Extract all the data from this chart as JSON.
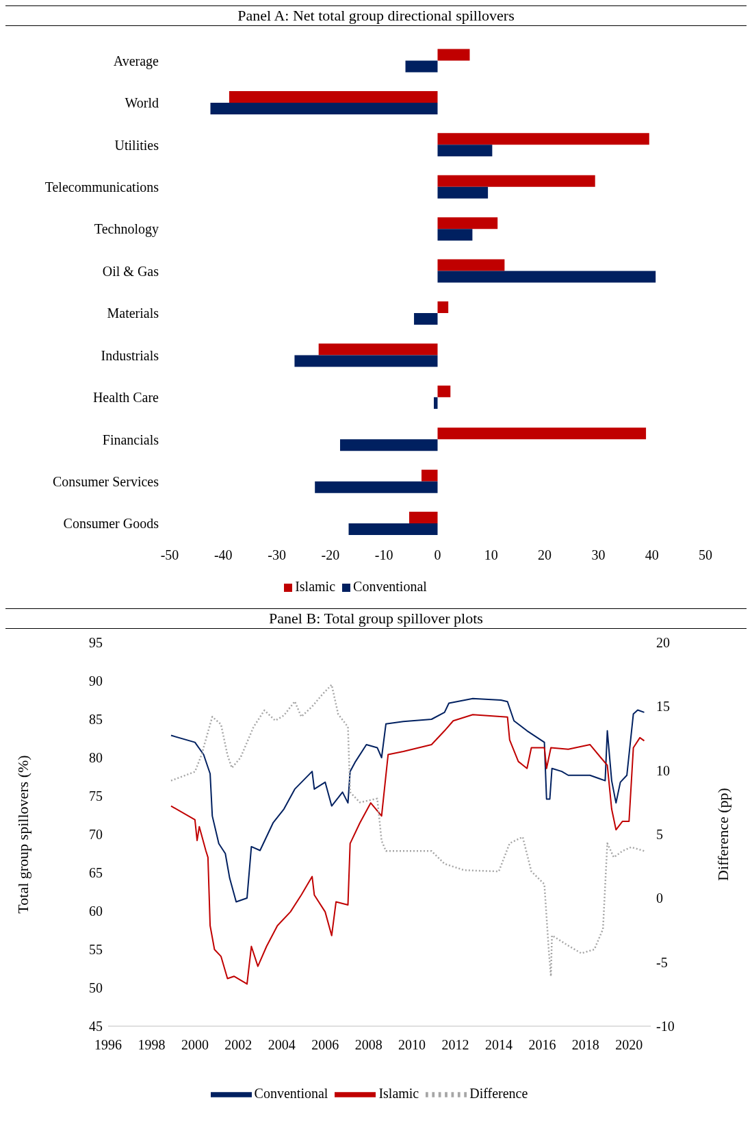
{
  "chart_data": [
    {
      "type": "bar",
      "title": "Panel A: Net total group directional spillovers",
      "orientation": "horizontal",
      "categories": [
        "Average",
        "World",
        "Utilities",
        "Telecommunications",
        "Technology",
        "Oil & Gas",
        "Materials",
        "Industrials",
        "Health Care",
        "Financials",
        "Consumer Services",
        "Consumer Goods"
      ],
      "series": [
        {
          "name": "Islamic",
          "color": "#c00000",
          "values": [
            6.0,
            -38.9,
            39.5,
            29.4,
            11.2,
            12.5,
            2.0,
            -22.2,
            2.4,
            38.9,
            -3.0,
            -5.3
          ]
        },
        {
          "name": "Conventional",
          "color": "#002060",
          "values": [
            -6.0,
            -42.4,
            10.2,
            9.4,
            6.5,
            40.7,
            -4.4,
            -26.7,
            -0.7,
            -18.2,
            -22.9,
            -16.6
          ]
        }
      ],
      "xlim": [
        -50,
        50
      ],
      "xticks": [
        -50,
        -40,
        -30,
        -20,
        -10,
        0,
        10,
        20,
        30,
        40,
        50
      ],
      "legend": "bottom",
      "grid": false
    },
    {
      "type": "line",
      "title": "Panel B: Total group spillover plots",
      "ylabel": "Total group spillovers (%)",
      "y2label": "Difference (pp)",
      "xlim": [
        1996,
        2021
      ],
      "xticks": [
        1996,
        1998,
        2000,
        2002,
        2004,
        2006,
        2008,
        2010,
        2012,
        2014,
        2016,
        2018,
        2020
      ],
      "ylim": [
        45,
        95
      ],
      "yticks": [
        45,
        50,
        55,
        60,
        65,
        70,
        75,
        80,
        85,
        90,
        95
      ],
      "y2lim": [
        -10,
        20
      ],
      "y2ticks": [
        -10,
        -5,
        0,
        5,
        10,
        15,
        20
      ],
      "legend": "bottom",
      "grid": false,
      "marker": "none",
      "series": [
        {
          "name": "Conventional",
          "color": "#002060",
          "line_style": "solid",
          "x": [
            1998.9,
            2000,
            2000.4,
            2000.7,
            2000.8,
            2001.1,
            2001.4,
            2001.6,
            2001.9,
            2002.4,
            2002.6,
            2003,
            2003.6,
            2004.1,
            2004.6,
            2005.4,
            2005.5,
            2006,
            2006.3,
            2006.8,
            2007.05,
            2007.15,
            2007.4,
            2007.9,
            2008.4,
            2008.6,
            2008.8,
            2009.6,
            2010.9,
            2011.5,
            2011.7,
            2012.8,
            2014.1,
            2014.4,
            2014.7,
            2015.3,
            2016.1,
            2016.2,
            2016.35,
            2016.45,
            2016.9,
            2017.2,
            2018.2,
            2018.6,
            2018.9,
            2019,
            2019.2,
            2019.4,
            2019.6,
            2019.9,
            2020.2,
            2020.4,
            2020.7
          ],
          "values": [
            82.9,
            82,
            80.4,
            77.9,
            72.4,
            68.8,
            67.5,
            64.3,
            61.2,
            61.7,
            68.4,
            67.9,
            71.5,
            73.3,
            75.9,
            78.2,
            75.9,
            76.8,
            73.7,
            75.5,
            74.1,
            78.2,
            79.5,
            81.7,
            81.3,
            80,
            84.4,
            84.7,
            85,
            85.9,
            87.1,
            87.7,
            87.5,
            87.3,
            84.8,
            83.5,
            82,
            74.6,
            74.6,
            78.6,
            78.2,
            77.7,
            77.7,
            77.3,
            77,
            83.5,
            77,
            74.1,
            76.8,
            77.7,
            85.7,
            86.2,
            85.9
          ]
        },
        {
          "name": "Islamic",
          "color": "#c00000",
          "line_style": "solid",
          "x": [
            1998.9,
            2000,
            2000.1,
            2000.2,
            2000.5,
            2000.6,
            2000.7,
            2000.9,
            2001.2,
            2001.5,
            2001.8,
            2002.4,
            2002.6,
            2002.9,
            2003.3,
            2003.8,
            2004.4,
            2004.9,
            2005.4,
            2005.5,
            2006,
            2006.3,
            2006.5,
            2007.05,
            2007.15,
            2007.6,
            2008.1,
            2008.6,
            2008.9,
            2009.6,
            2010.9,
            2011.5,
            2011.9,
            2012.8,
            2014.4,
            2014.5,
            2014.9,
            2015.3,
            2015.5,
            2016.1,
            2016.2,
            2016.4,
            2017.2,
            2018.2,
            2018.7,
            2019,
            2019.2,
            2019.4,
            2019.7,
            2020,
            2020.2,
            2020.5,
            2020.7
          ],
          "values": [
            73.7,
            71.9,
            69.2,
            71,
            67.9,
            67,
            58.1,
            55,
            54.1,
            51.2,
            51.5,
            50.5,
            55.4,
            52.8,
            55.4,
            58.1,
            59.9,
            62.1,
            64.5,
            62.1,
            59.9,
            56.8,
            61.2,
            60.8,
            68.8,
            71.5,
            74.1,
            72.4,
            80.4,
            80.8,
            81.7,
            83.5,
            84.8,
            85.6,
            85.3,
            82.3,
            79.5,
            78.6,
            81.3,
            81.3,
            78.6,
            81.3,
            81.1,
            81.7,
            80,
            79,
            73.3,
            70.6,
            71.7,
            71.7,
            81.3,
            82.6,
            82.2
          ]
        },
        {
          "name": "Difference",
          "color": "#a6a6a6",
          "line_style": "dotted",
          "axis": "y2",
          "x": [
            1998.9,
            2000,
            2000.3,
            2000.8,
            2001.2,
            2001.5,
            2001.7,
            2002.1,
            2002.7,
            2003.2,
            2003.7,
            2004.1,
            2004.6,
            2004.9,
            2005.4,
            2005.9,
            2006.3,
            2006.6,
            2007.05,
            2007.15,
            2007.6,
            2008.4,
            2008.6,
            2008.8,
            2009.6,
            2010.9,
            2011.5,
            2012.4,
            2014,
            2014.5,
            2015.1,
            2015.5,
            2016.1,
            2016.3,
            2016.4,
            2016.45,
            2017.2,
            2017.8,
            2018.4,
            2018.8,
            2019,
            2019.3,
            2019.7,
            2020.1,
            2020.7
          ],
          "values": [
            9.2,
            9.9,
            11.2,
            14.2,
            13.6,
            11.2,
            10.2,
            11,
            13.4,
            14.7,
            13.9,
            14.3,
            15.4,
            14.2,
            15,
            16,
            16.7,
            14.4,
            13.4,
            8.3,
            7.5,
            7.8,
            4.5,
            3.7,
            3.7,
            3.7,
            2.7,
            2.2,
            2.1,
            4.3,
            4.8,
            2.1,
            1.1,
            -4,
            -6.1,
            -2.9,
            -3.7,
            -4.3,
            -4,
            -2.4,
            4.3,
            3.2,
            3.7,
            4,
            3.7
          ]
        }
      ]
    }
  ]
}
